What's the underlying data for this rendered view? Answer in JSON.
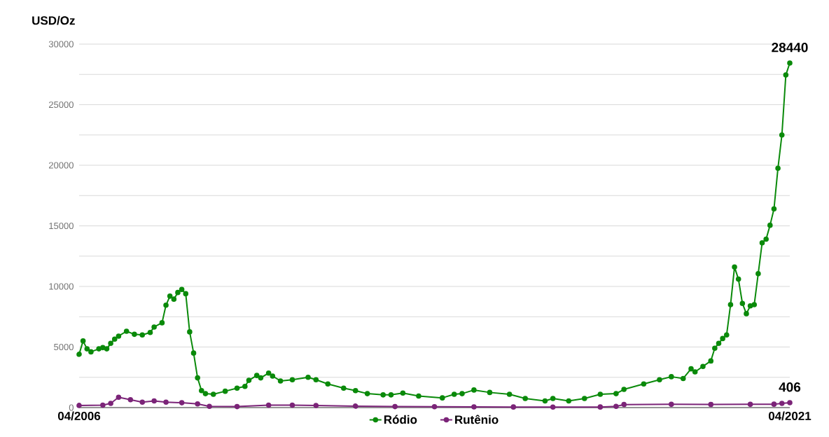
{
  "chart_data": {
    "type": "line",
    "ylabel": "USD/Oz",
    "xlim": [
      "2006-04",
      "2021-04"
    ],
    "xticks": [
      {
        "value": "2006-04",
        "label": "04/2006"
      },
      {
        "value": "2021-04",
        "label": "04/2021"
      }
    ],
    "ylim": [
      0,
      30000
    ],
    "yticks": [
      0,
      {
        "value": 2500,
        "label": null
      },
      5000,
      {
        "value": 7500,
        "label": null
      },
      10000,
      {
        "value": 12500,
        "label": null
      },
      15000,
      {
        "value": 17500,
        "label": null
      },
      20000,
      {
        "value": 22500,
        "label": null
      },
      25000,
      {
        "value": 27500,
        "label": null
      },
      30000
    ],
    "grid": "y",
    "legend": "bottom",
    "marker": "circle",
    "line_style": "solid",
    "series": [
      {
        "name": "Ródio",
        "color": "#0a8a0a",
        "x": [
          "2006-04",
          "2006-05",
          "2006-06",
          "2006-07",
          "2006-09",
          "2006-10",
          "2006-11",
          "2006-12",
          "2007-01",
          "2007-02",
          "2007-04",
          "2007-06",
          "2007-08",
          "2007-10",
          "2007-11",
          "2008-01",
          "2008-02",
          "2008-03",
          "2008-04",
          "2008-05",
          "2008-06",
          "2008-07",
          "2008-08",
          "2008-09",
          "2008-10",
          "2008-11",
          "2008-12",
          "2009-02",
          "2009-05",
          "2009-08",
          "2009-10",
          "2009-11",
          "2010-01",
          "2010-02",
          "2010-04",
          "2010-05",
          "2010-07",
          "2010-10",
          "2011-02",
          "2011-04",
          "2011-07",
          "2011-11",
          "2012-02",
          "2012-05",
          "2012-09",
          "2012-11",
          "2013-02",
          "2013-06",
          "2013-12",
          "2014-03",
          "2014-05",
          "2014-08",
          "2014-12",
          "2015-05",
          "2015-09",
          "2016-02",
          "2016-04",
          "2016-08",
          "2016-12",
          "2017-04",
          "2017-08",
          "2017-10",
          "2018-03",
          "2018-07",
          "2018-10",
          "2019-01",
          "2019-03",
          "2019-04",
          "2019-06",
          "2019-08",
          "2019-09",
          "2019-10",
          "2019-11",
          "2019-12",
          "2020-01",
          "2020-02",
          "2020-03",
          "2020-04",
          "2020-05",
          "2020-06",
          "2020-07",
          "2020-08",
          "2020-09",
          "2020-10",
          "2020-11",
          "2020-12",
          "2021-01",
          "2021-02",
          "2021-03",
          "2021-04"
        ],
        "values": [
          4400,
          5500,
          4850,
          4600,
          4850,
          4950,
          4850,
          5300,
          5650,
          5900,
          6300,
          6050,
          6000,
          6200,
          6650,
          7000,
          8450,
          9200,
          8950,
          9500,
          9750,
          9400,
          6250,
          4500,
          2450,
          1400,
          1150,
          1100,
          1350,
          1600,
          1750,
          2250,
          2650,
          2450,
          2850,
          2600,
          2200,
          2300,
          2500,
          2300,
          1950,
          1600,
          1400,
          1150,
          1050,
          1050,
          1200,
          950,
          800,
          1100,
          1150,
          1450,
          1250,
          1100,
          750,
          550,
          750,
          550,
          750,
          1100,
          1150,
          1500,
          1950,
          2300,
          2550,
          2400,
          3200,
          2950,
          3400,
          3850,
          4900,
          5300,
          5700,
          6000,
          8500,
          11600,
          10600,
          8600,
          7750,
          8400,
          8500,
          11050,
          13600,
          13900,
          15050,
          16400,
          19750,
          22500,
          27450,
          28440
        ]
      },
      {
        "name": "Rutênio",
        "color": "#7b2478",
        "x": [
          "2006-04",
          "2006-10",
          "2006-12",
          "2007-02",
          "2007-05",
          "2007-08",
          "2007-11",
          "2008-02",
          "2008-06",
          "2008-10",
          "2009-01",
          "2009-08",
          "2010-04",
          "2010-10",
          "2011-04",
          "2012-02",
          "2012-12",
          "2013-10",
          "2014-08",
          "2015-06",
          "2016-04",
          "2017-04",
          "2017-08",
          "2017-10",
          "2018-10",
          "2019-08",
          "2020-06",
          "2020-12",
          "2021-02",
          "2021-04"
        ],
        "values": [
          180,
          200,
          350,
          850,
          650,
          450,
          550,
          450,
          400,
          300,
          100,
          80,
          200,
          200,
          170,
          120,
          80,
          70,
          60,
          50,
          40,
          50,
          100,
          250,
          270,
          260,
          270,
          280,
          350,
          406
        ]
      }
    ],
    "annotations": [
      {
        "text": "28440",
        "x": "2021-04",
        "y": 28440
      },
      {
        "text": "406",
        "x": "2021-04",
        "y": 406
      }
    ]
  }
}
